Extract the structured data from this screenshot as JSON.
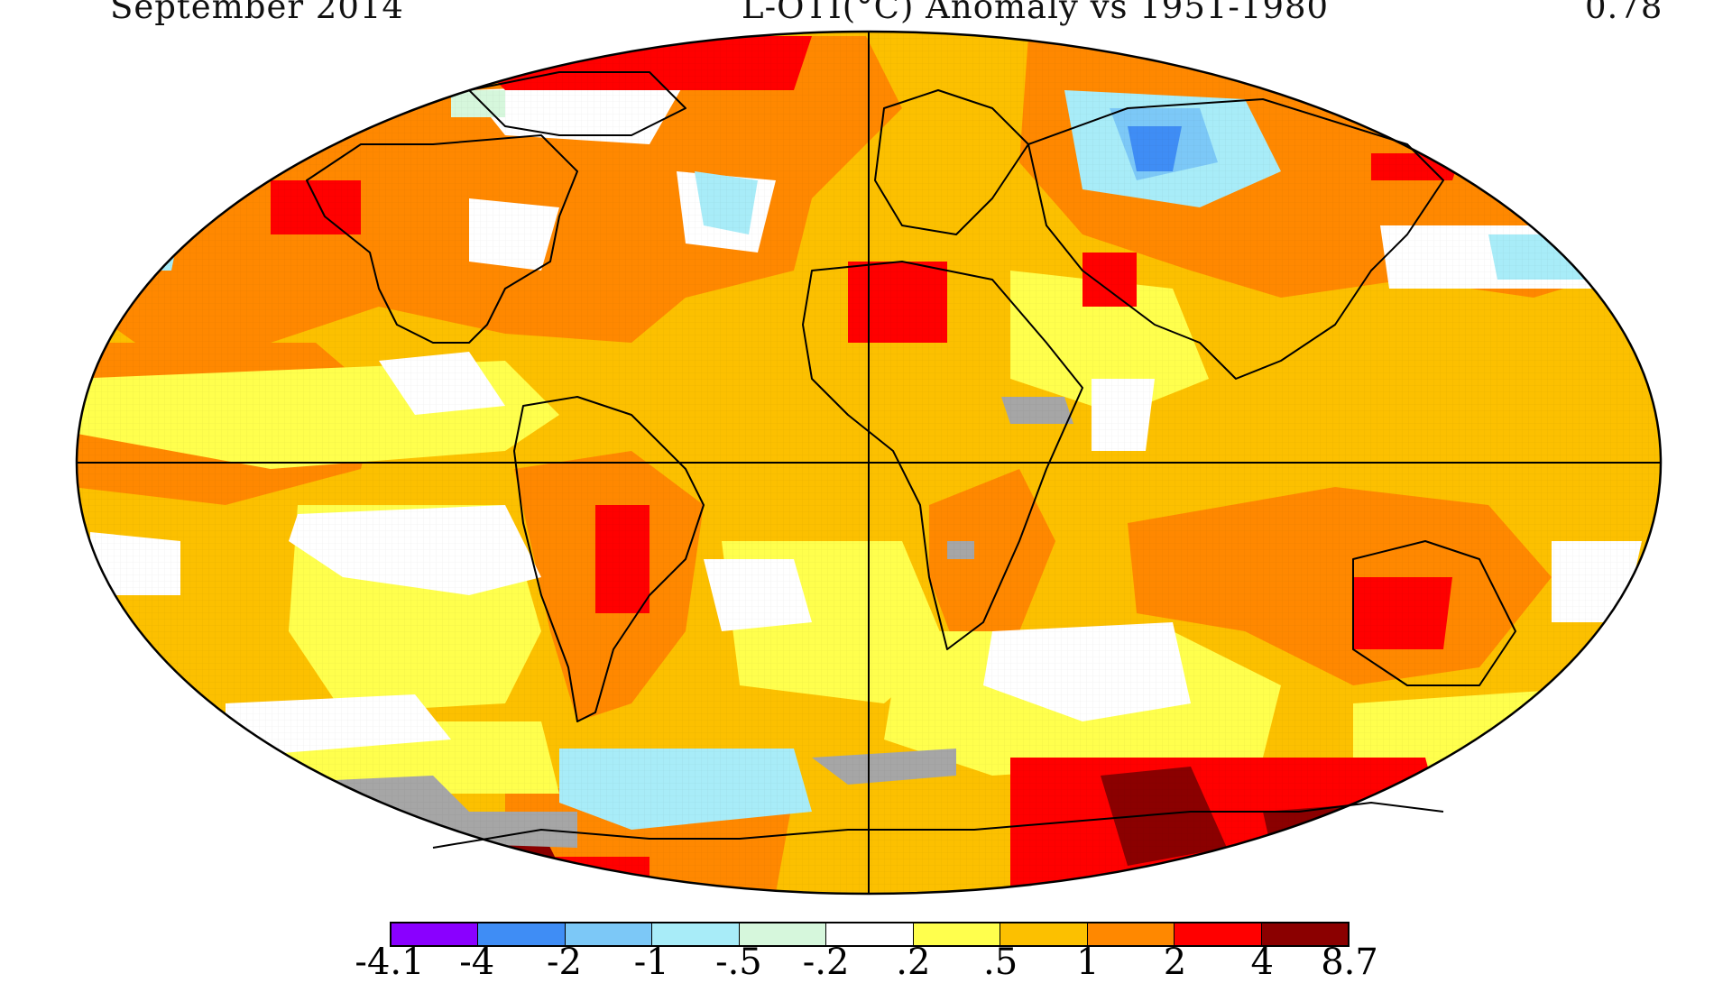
{
  "header": {
    "left": "September 2014",
    "center": "L-OTI(°C) Anomaly vs 1951-1980",
    "right": "0.78"
  },
  "legend": {
    "ticks": [
      "-4.1",
      "-4",
      "-2",
      "-1",
      "-.5",
      "-.2",
      ".2",
      ".5",
      "1",
      "2",
      "4",
      "8.7"
    ],
    "colors": [
      "#8a00ff",
      "#3f8df5",
      "#7cc8f7",
      "#a8ecf8",
      "#d6f7dc",
      "#ffffff",
      "#ffff4d",
      "#fcc000",
      "#ff8800",
      "#ff0000",
      "#8b0000"
    ]
  },
  "map": {
    "projection": "Robinson",
    "missing_data_color": "#a6a6a6"
  }
}
